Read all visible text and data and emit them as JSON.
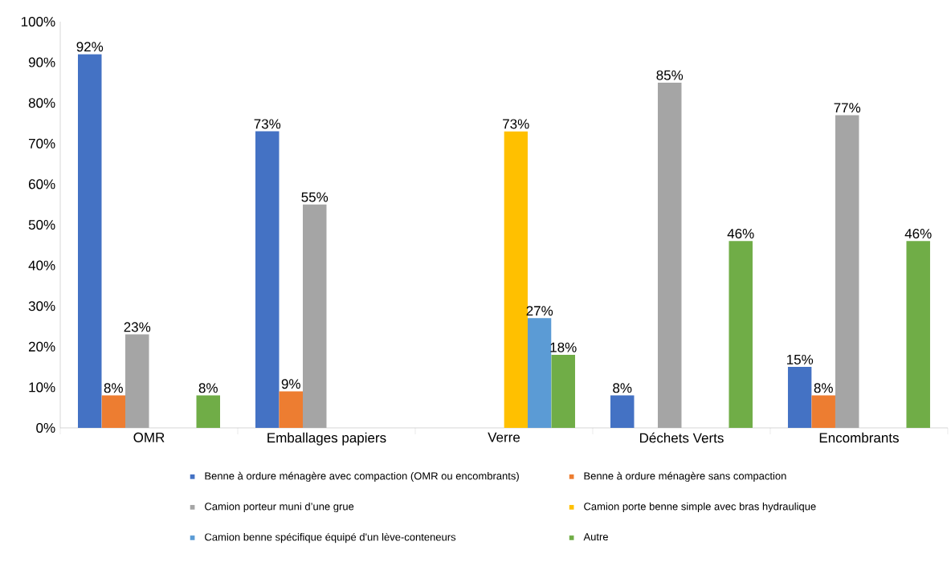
{
  "chart_data": {
    "type": "bar",
    "categories": [
      "OMR",
      "Emballages papiers",
      "Verre",
      "Déchets Verts",
      "Encombrants"
    ],
    "series": [
      {
        "name": "Benne à ordure ménagère avec compaction (OMR ou encombrants)",
        "color": "#4472c4",
        "values": [
          92,
          73,
          null,
          8,
          15
        ],
        "value_labels": [
          "92%",
          "73%",
          null,
          "8%",
          "15%"
        ]
      },
      {
        "name": "Benne à ordure ménagère sans compaction",
        "color": "#ed7d31",
        "values": [
          8,
          9,
          null,
          null,
          8
        ],
        "value_labels": [
          "8%",
          "9%",
          null,
          null,
          "8%"
        ]
      },
      {
        "name": "Camion porteur muni d’une grue",
        "color": "#a5a5a5",
        "values": [
          23,
          55,
          null,
          85,
          77
        ],
        "value_labels": [
          "23%",
          "55%",
          null,
          "85%",
          "77%"
        ]
      },
      {
        "name": "Camion porte benne simple avec bras hydraulique",
        "color": "#ffc000",
        "values": [
          null,
          null,
          73,
          null,
          null
        ],
        "value_labels": [
          null,
          null,
          "73%",
          null,
          null
        ]
      },
      {
        "name": "Camion benne spécifique équipé d'un lève-conteneurs",
        "color": "#5b9bd5",
        "values": [
          null,
          null,
          27,
          null,
          null
        ],
        "value_labels": [
          null,
          null,
          "27%",
          null,
          null
        ]
      },
      {
        "name": "Autre",
        "color": "#70ad47",
        "values": [
          8,
          null,
          18,
          46,
          46
        ],
        "value_labels": [
          "8%",
          null,
          "18%",
          "46%",
          "46%"
        ]
      }
    ],
    "ylim": [
      0,
      100
    ],
    "yticks": [
      {
        "value": 0,
        "label": "0%"
      },
      {
        "value": 10,
        "label": "10%"
      },
      {
        "value": 20,
        "label": "20%"
      },
      {
        "value": 30,
        "label": "30%"
      },
      {
        "value": 40,
        "label": "40%"
      },
      {
        "value": 50,
        "label": "50%"
      },
      {
        "value": 60,
        "label": "60%"
      },
      {
        "value": 70,
        "label": "70%"
      },
      {
        "value": 80,
        "label": "80%"
      },
      {
        "value": 90,
        "label": "90%"
      },
      {
        "value": 100,
        "label": "100%"
      }
    ],
    "legend": "bottom"
  }
}
